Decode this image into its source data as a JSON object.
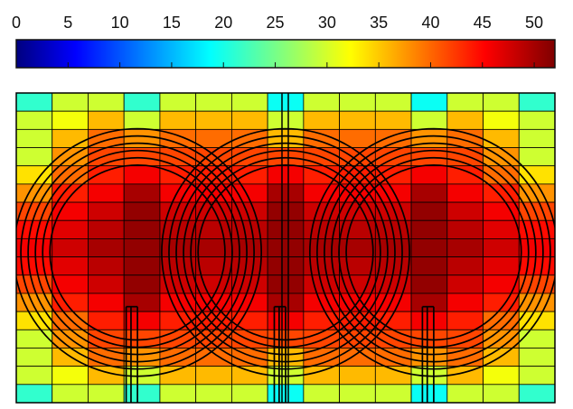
{
  "chart_data": {
    "type": "heatmap",
    "colorbar": {
      "orientation": "horizontal",
      "position": "top",
      "range": [
        0,
        52
      ],
      "colormap": "jet",
      "tick_values": [
        0,
        5,
        10,
        15,
        20,
        25,
        30,
        35,
        40,
        45,
        50
      ],
      "tick_labels": [
        "0",
        "5",
        "10",
        "15",
        "20",
        "25",
        "30",
        "35",
        "40",
        "45",
        "50"
      ]
    },
    "grid": {
      "columns": 15,
      "rows": 17,
      "cell_values": [
        [
          22,
          30,
          30,
          22,
          30,
          30,
          30,
          20,
          30,
          30,
          30,
          20,
          30,
          30,
          22
        ],
        [
          30,
          32,
          36,
          30,
          36,
          36,
          36,
          30,
          36,
          36,
          36,
          30,
          36,
          32,
          30
        ],
        [
          30,
          36,
          40,
          38,
          40,
          40,
          40,
          36,
          40,
          40,
          40,
          38,
          40,
          36,
          30
        ],
        [
          30,
          38,
          42,
          42,
          42,
          42,
          42,
          42,
          42,
          42,
          42,
          42,
          42,
          38,
          30
        ],
        [
          34,
          40,
          44,
          46,
          44,
          44,
          44,
          46,
          44,
          44,
          44,
          46,
          44,
          40,
          34
        ],
        [
          38,
          44,
          46,
          50,
          46,
          46,
          46,
          50,
          46,
          46,
          46,
          50,
          46,
          44,
          38
        ],
        [
          42,
          46,
          48,
          51,
          48,
          48,
          48,
          51,
          48,
          48,
          48,
          51,
          48,
          46,
          42
        ],
        [
          45,
          47,
          49,
          51,
          49,
          49,
          49,
          51,
          49,
          49,
          49,
          51,
          49,
          47,
          45
        ],
        [
          46,
          48,
          50,
          51,
          50,
          50,
          50,
          51,
          50,
          50,
          50,
          51,
          50,
          48,
          46
        ],
        [
          45,
          47,
          49,
          51,
          49,
          49,
          49,
          51,
          49,
          49,
          49,
          51,
          49,
          47,
          45
        ],
        [
          42,
          46,
          48,
          51,
          48,
          48,
          48,
          51,
          48,
          48,
          48,
          51,
          48,
          46,
          42
        ],
        [
          38,
          44,
          46,
          50,
          46,
          46,
          46,
          50,
          46,
          46,
          46,
          50,
          46,
          44,
          38
        ],
        [
          34,
          40,
          44,
          46,
          44,
          44,
          44,
          46,
          44,
          44,
          44,
          46,
          44,
          40,
          34
        ],
        [
          30,
          38,
          42,
          42,
          42,
          42,
          42,
          42,
          42,
          42,
          42,
          42,
          42,
          38,
          30
        ],
        [
          30,
          36,
          40,
          38,
          40,
          40,
          40,
          36,
          40,
          40,
          40,
          38,
          40,
          36,
          30
        ],
        [
          30,
          32,
          36,
          30,
          36,
          36,
          36,
          30,
          36,
          36,
          36,
          30,
          36,
          32,
          30
        ],
        [
          22,
          30,
          30,
          22,
          30,
          30,
          30,
          20,
          30,
          30,
          30,
          20,
          30,
          30,
          22
        ]
      ]
    },
    "coils": {
      "count": 3,
      "turns": 6,
      "overlay_color": "#000000"
    },
    "legend": "none"
  }
}
